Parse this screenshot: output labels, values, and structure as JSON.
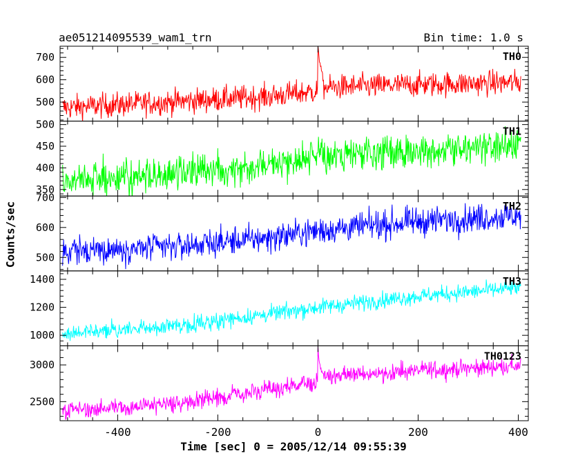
{
  "header": {
    "title": "ae051214095539_wam1_trn",
    "bin_time": "Bin time: 1.0 s"
  },
  "chart_data": {
    "type": "line",
    "xlabel": "Time [sec] 0 = 2005/12/14 09:55:39",
    "ylabel": "Counts/sec",
    "xlim": [
      -515,
      420
    ],
    "xticks": [
      -400,
      -200,
      0,
      200,
      400
    ],
    "series_x_range": [
      -510,
      405
    ],
    "grid": false,
    "panels": [
      {
        "name": "TH0",
        "color": "#ff0000",
        "ylim": [
          415,
          750
        ],
        "yticks": [
          500,
          600,
          700
        ],
        "trend": {
          "x": [
            -510,
            -300,
            -100,
            -5,
            10,
            200,
            405
          ],
          "y": [
            475,
            500,
            525,
            548,
            565,
            578,
            588
          ]
        },
        "noise_amplitude": 38,
        "spike": {
          "x": [
            0,
            2,
            5,
            10
          ],
          "y": [
            745,
            700,
            660,
            610
          ]
        }
      },
      {
        "name": "TH1",
        "color": "#00ff00",
        "ylim": [
          335,
          508
        ],
        "yticks": [
          350,
          400,
          450,
          500
        ],
        "trend": {
          "x": [
            -510,
            -300,
            -100,
            0,
            200,
            405
          ],
          "y": [
            370,
            385,
            410,
            425,
            440,
            450
          ]
        },
        "noise_amplitude": 26
      },
      {
        "name": "TH2",
        "color": "#0000ff",
        "ylim": [
          455,
          705
        ],
        "yticks": [
          500,
          600,
          700
        ],
        "trend": {
          "x": [
            -510,
            -300,
            -100,
            0,
            200,
            405
          ],
          "y": [
            520,
            535,
            565,
            590,
            620,
            640
          ]
        },
        "noise_amplitude": 32
      },
      {
        "name": "TH3",
        "color": "#00ffff",
        "ylim": [
          925,
          1460
        ],
        "yticks": [
          1000,
          1200,
          1400
        ],
        "trend": {
          "x": [
            -510,
            -300,
            -100,
            0,
            200,
            405
          ],
          "y": [
            1010,
            1060,
            1150,
            1200,
            1280,
            1340
          ]
        },
        "noise_amplitude": 40
      },
      {
        "name": "TH0123",
        "color": "#ff00ff",
        "ylim": [
          2240,
          3260
        ],
        "yticks": [
          2500,
          3000
        ],
        "trend": {
          "x": [
            -510,
            -300,
            -100,
            -5,
            10,
            200,
            405
          ],
          "y": [
            2370,
            2470,
            2650,
            2760,
            2840,
            2920,
            2990
          ]
        },
        "noise_amplitude": 80,
        "spike": {
          "x": [
            0,
            2,
            5,
            10
          ],
          "y": [
            3240,
            3060,
            2960,
            2890
          ]
        }
      }
    ]
  }
}
